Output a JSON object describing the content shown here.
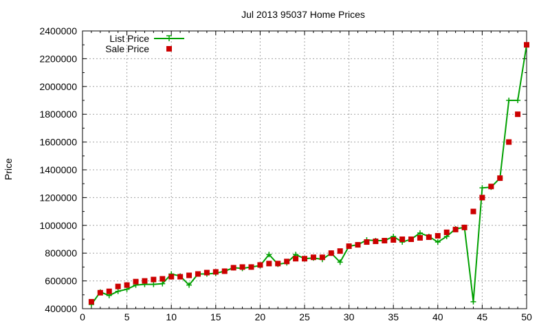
{
  "chart_data": {
    "type": "line",
    "title": "Jul 2013 95037 Home Prices",
    "ylabel": "Price",
    "xlabel": "",
    "xlim": [
      0,
      50
    ],
    "ylim": [
      400000,
      2400000
    ],
    "x_ticks": [
      0,
      5,
      10,
      15,
      20,
      25,
      30,
      35,
      40,
      45,
      50
    ],
    "y_ticks": [
      400000,
      600000,
      800000,
      1000000,
      1200000,
      1400000,
      1600000,
      1800000,
      2000000,
      2200000,
      2400000
    ],
    "grid": true,
    "legend_position": "top-left",
    "x": [
      1,
      2,
      3,
      4,
      5,
      6,
      7,
      8,
      9,
      10,
      11,
      12,
      13,
      14,
      15,
      16,
      17,
      18,
      19,
      20,
      21,
      22,
      23,
      24,
      25,
      26,
      27,
      28,
      29,
      30,
      31,
      32,
      33,
      34,
      35,
      36,
      37,
      38,
      39,
      40,
      41,
      42,
      43,
      44,
      45,
      46,
      47,
      48,
      49,
      50
    ],
    "series": [
      {
        "name": "List Price",
        "style": "line-plus",
        "color": "#00a000",
        "values": [
          430000,
          520000,
          495000,
          525000,
          540000,
          570000,
          575000,
          575000,
          580000,
          650000,
          635000,
          570000,
          650000,
          650000,
          655000,
          670000,
          695000,
          690000,
          700000,
          710000,
          790000,
          720000,
          730000,
          790000,
          760000,
          765000,
          755000,
          800000,
          735000,
          850000,
          860000,
          895000,
          890000,
          890000,
          920000,
          880000,
          900000,
          945000,
          920000,
          880000,
          920000,
          975000,
          985000,
          450000,
          1270000,
          1275000,
          1340000,
          1900000,
          1900000,
          2300000
        ]
      },
      {
        "name": "Sale Price",
        "style": "square",
        "color": "#cc0000",
        "values": [
          450000,
          515000,
          525000,
          560000,
          570000,
          595000,
          600000,
          610000,
          615000,
          630000,
          630000,
          640000,
          650000,
          660000,
          665000,
          670000,
          695000,
          700000,
          700000,
          715000,
          725000,
          725000,
          740000,
          760000,
          760000,
          770000,
          770000,
          800000,
          815000,
          850000,
          860000,
          880000,
          885000,
          890000,
          895000,
          900000,
          900000,
          910000,
          915000,
          925000,
          950000,
          970000,
          985000,
          1100000,
          1200000,
          1280000,
          1340000,
          1600000,
          1800000,
          2300000
        ]
      }
    ]
  }
}
